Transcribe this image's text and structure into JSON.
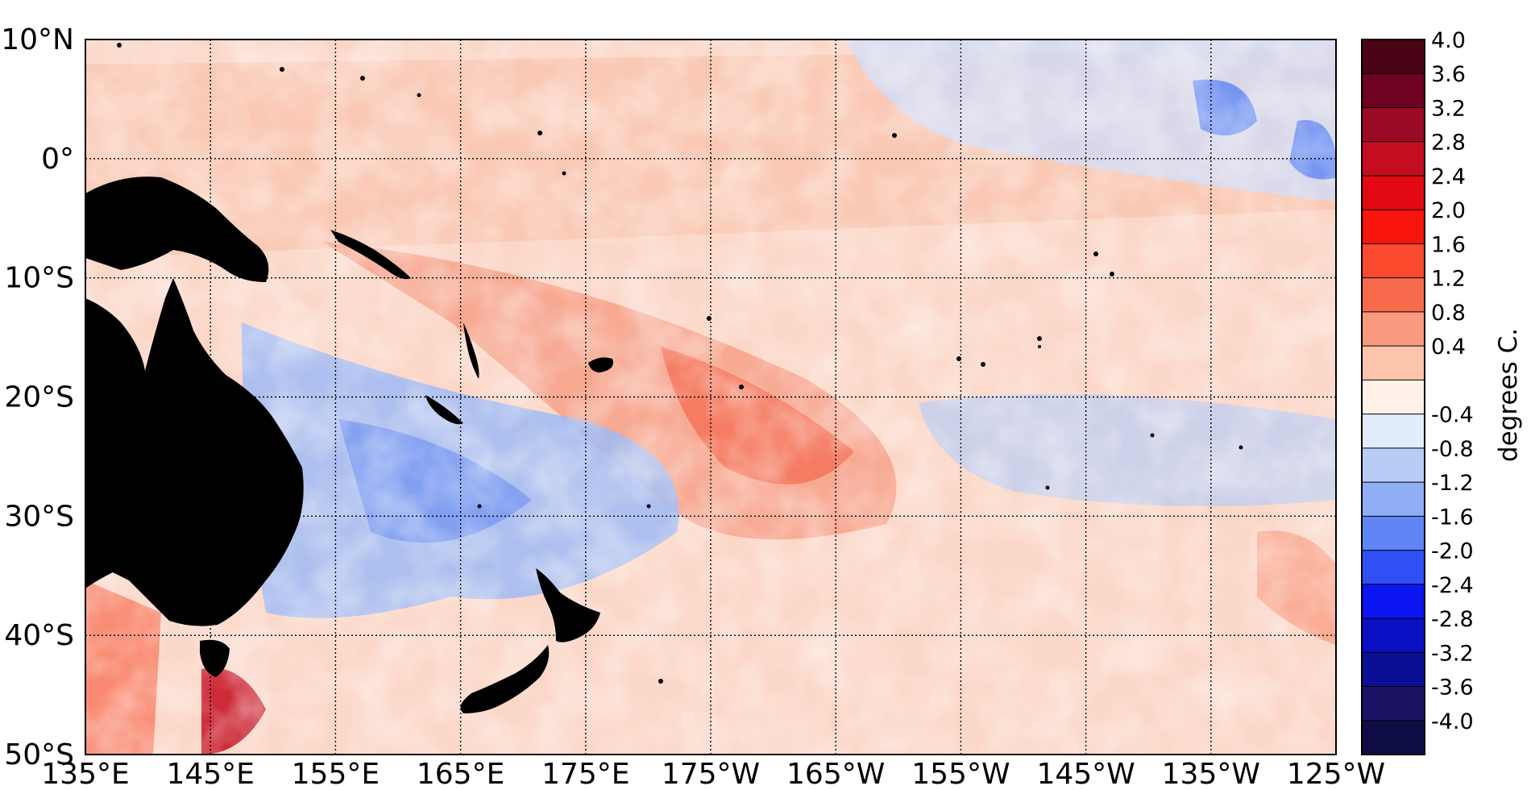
{
  "map": {
    "lat_labels": [
      "10°N",
      "0°",
      "10°S",
      "20°S",
      "30°S",
      "40°S",
      "50°S"
    ],
    "lon_labels": [
      "135°E",
      "145°E",
      "155°E",
      "165°E",
      "175°E",
      "175°W",
      "165°W",
      "155°W",
      "145°W",
      "135°W",
      "125°W"
    ],
    "land_color": "#000000",
    "grid_style": "dotted"
  },
  "colorbar": {
    "title": "degrees C.",
    "tick_labels": [
      "4.0",
      "3.6",
      "3.2",
      "2.8",
      "2.4",
      "2.0",
      "1.6",
      "1.2",
      "0.8",
      "0.4",
      "-0.4",
      "-0.8",
      "-1.2",
      "-1.6",
      "-2.0",
      "-2.4",
      "-2.8",
      "-3.2",
      "-3.6",
      "-4.0"
    ],
    "colors": [
      "#4a0416",
      "#6d0320",
      "#9b0a24",
      "#c40d1e",
      "#e30914",
      "#f8150d",
      "#fb4a2e",
      "#f86a4c",
      "#f99a7e",
      "#fcc4aa",
      "#fff0e8",
      "#e2ecfb",
      "#b8cdf5",
      "#8faef4",
      "#5f86f4",
      "#2f50f5",
      "#0c16f2",
      "#0a0fc4",
      "#0b0f95",
      "#1a1364",
      "#0d0c44"
    ]
  }
}
